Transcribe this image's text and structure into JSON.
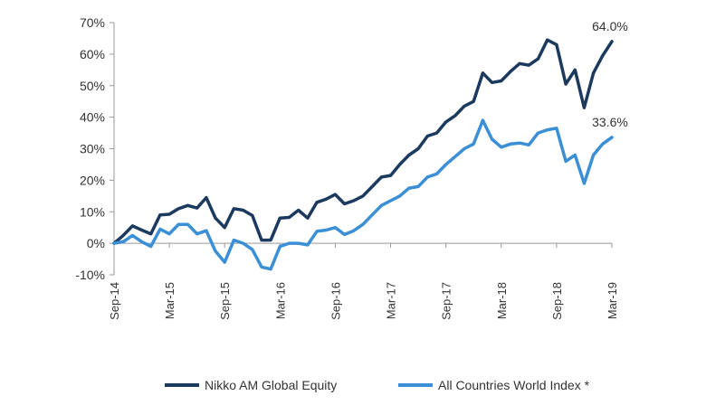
{
  "chart_data": {
    "type": "line",
    "title": "",
    "xlabel": "",
    "ylabel": "",
    "ylim": [
      -10,
      70
    ],
    "yticks": [
      -10,
      0,
      10,
      20,
      30,
      40,
      50,
      60,
      70
    ],
    "ytick_labels": [
      "-10%",
      "0%",
      "10%",
      "20%",
      "30%",
      "40%",
      "50%",
      "60%",
      "70%"
    ],
    "x_tick_labels": [
      "Sep-14",
      "Mar-15",
      "Sep-15",
      "Mar-16",
      "Sep-16",
      "Mar-17",
      "Sep-17",
      "Mar-18",
      "Sep-18",
      "Mar-19"
    ],
    "x_tick_interval_months": 6,
    "x": [
      "Sep-14",
      "Oct-14",
      "Nov-14",
      "Dec-14",
      "Jan-15",
      "Feb-15",
      "Mar-15",
      "Apr-15",
      "May-15",
      "Jun-15",
      "Jul-15",
      "Aug-15",
      "Sep-15",
      "Oct-15",
      "Nov-15",
      "Dec-15",
      "Jan-16",
      "Feb-16",
      "Mar-16",
      "Apr-16",
      "May-16",
      "Jun-16",
      "Jul-16",
      "Aug-16",
      "Sep-16",
      "Oct-16",
      "Nov-16",
      "Dec-16",
      "Jan-17",
      "Feb-17",
      "Mar-17",
      "Apr-17",
      "May-17",
      "Jun-17",
      "Jul-17",
      "Aug-17",
      "Sep-17",
      "Oct-17",
      "Nov-17",
      "Dec-17",
      "Jan-18",
      "Feb-18",
      "Mar-18",
      "Apr-18",
      "May-18",
      "Jun-18",
      "Jul-18",
      "Aug-18",
      "Sep-18",
      "Oct-18",
      "Nov-18",
      "Dec-18",
      "Jan-19",
      "Feb-19",
      "Mar-19"
    ],
    "series": [
      {
        "name": "Nikko AM Global Equity",
        "color": "#1b3a5e",
        "end_label": "64.0%",
        "values": [
          0,
          2.5,
          5.5,
          4.2,
          3.0,
          9.0,
          9.2,
          11.0,
          12.0,
          11.2,
          14.5,
          8.0,
          5.0,
          11.0,
          10.5,
          8.8,
          1.0,
          1.0,
          8.0,
          8.2,
          10.5,
          8.0,
          13.0,
          14.0,
          15.5,
          12.5,
          13.5,
          15.0,
          18.0,
          21.0,
          21.5,
          25.0,
          28.0,
          30.0,
          34.0,
          35.0,
          38.5,
          40.5,
          43.5,
          45.0,
          54.0,
          51.0,
          51.5,
          54.5,
          57.0,
          56.5,
          58.5,
          64.5,
          63.0,
          50.5,
          55.0,
          43.0,
          54.0,
          59.5,
          64.0
        ]
      },
      {
        "name": "All Countries World Index *",
        "color": "#3a8fd6",
        "end_label": "33.6%",
        "values": [
          0,
          0.5,
          2.5,
          0.5,
          -1.0,
          4.5,
          3.0,
          6.0,
          6.0,
          3.0,
          4.0,
          -2.5,
          -6.0,
          1.0,
          0.0,
          -2.0,
          -7.5,
          -8.2,
          -1.0,
          0.0,
          0.0,
          -0.5,
          3.8,
          4.2,
          5.0,
          2.8,
          4.0,
          6.0,
          9.0,
          12.0,
          13.5,
          15.0,
          17.5,
          18.0,
          21.0,
          22.0,
          25.0,
          27.5,
          30.0,
          31.5,
          39.0,
          33.0,
          30.5,
          31.5,
          31.8,
          31.2,
          35.0,
          36.0,
          36.5,
          26.0,
          28.0,
          19.0,
          28.0,
          31.5,
          33.6
        ]
      }
    ],
    "grid": false,
    "legend_position": "bottom"
  }
}
